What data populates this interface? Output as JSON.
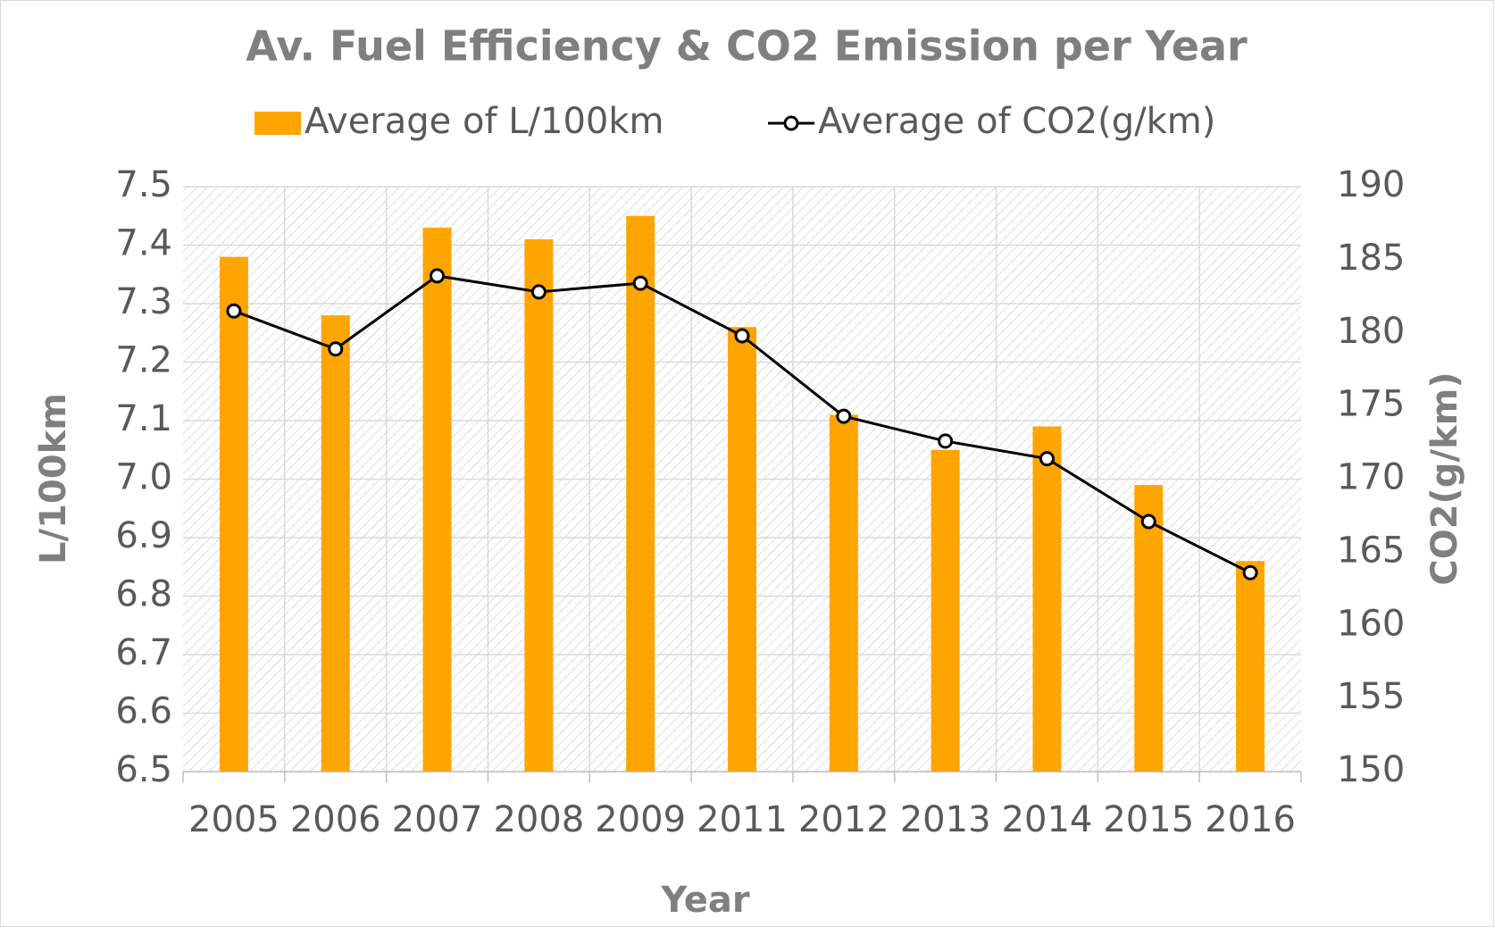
{
  "chart_data": {
    "type": "bar-line",
    "title": "Av. Fuel Efficiency & CO2 Emission per Year",
    "x_label": "Year",
    "y_label": "L/100km",
    "y2_label": "CO2(g/km)",
    "categories": [
      "2005",
      "2006",
      "2007",
      "2008",
      "2009",
      "2011",
      "2012",
      "2013",
      "2014",
      "2015",
      "2016"
    ],
    "series": [
      {
        "name": "Average of L/100km",
        "type": "bar",
        "color": "#ffa500",
        "values": [
          7.38,
          7.28,
          7.43,
          7.41,
          7.45,
          7.26,
          7.11,
          7.05,
          7.09,
          6.99,
          6.86
        ]
      },
      {
        "name": "Average of CO2(g/km)",
        "type": "line",
        "axis": "y2",
        "color": "#000000",
        "values": [
          181.5,
          178.9,
          183.9,
          182.8,
          183.4,
          179.8,
          174.3,
          172.6,
          171.4,
          167.1,
          163.6
        ]
      }
    ],
    "ylim": [
      6.5,
      7.5
    ],
    "yticks": [
      6.5,
      6.6,
      6.7,
      6.8,
      6.9,
      {
        "value": 7,
        "label": "7.0"
      },
      7.1,
      7.2,
      7.3,
      7.4,
      7.5
    ],
    "y2lim": [
      150,
      190
    ],
    "y2ticks": [
      150,
      155,
      160,
      165,
      170,
      175,
      180,
      185,
      190
    ],
    "grid": true,
    "legend": "top"
  }
}
